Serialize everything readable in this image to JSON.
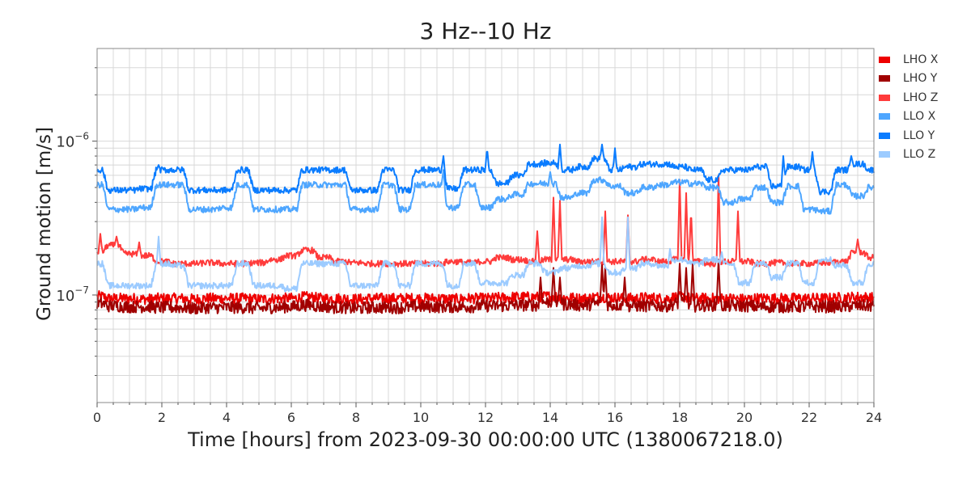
{
  "chart_data": {
    "type": "line",
    "title": "3 Hz--10 Hz",
    "xlabel": "Time [hours] from 2023-09-30 00:00:00 UTC (1380067218.0)",
    "ylabel": "Ground motion [m/s]",
    "xlim": [
      0,
      24
    ],
    "ylim": [
      2e-08,
      4e-06
    ],
    "yscale": "log",
    "grid": true,
    "legend_position": "right",
    "x_ticks": [
      "0",
      "2",
      "4",
      "6",
      "8",
      "10",
      "12",
      "14",
      "16",
      "18",
      "20",
      "22",
      "24"
    ],
    "y_ticks": [
      {
        "value": 1e-06,
        "base": "10",
        "exp": "−6"
      },
      {
        "value": 1e-07,
        "base": "10",
        "exp": "−7"
      }
    ],
    "value_unit_scale": 1e-07,
    "x": [
      0,
      0.5,
      1,
      1.5,
      2,
      2.5,
      3,
      3.5,
      4,
      4.5,
      5,
      5.5,
      6,
      6.5,
      7,
      7.5,
      8,
      8.5,
      9,
      9.5,
      10,
      10.5,
      11,
      11.5,
      12,
      12.5,
      13,
      13.5,
      14,
      14.5,
      15,
      15.5,
      16,
      16.5,
      17,
      17.5,
      18,
      18.5,
      19,
      19.5,
      20,
      20.5,
      21,
      21.5,
      22,
      22.5,
      23,
      23.5,
      24
    ],
    "series": [
      {
        "name": "LHO X",
        "color": "#ee0000",
        "noise": 0.035,
        "values": [
          0.98,
          0.95,
          0.95,
          0.94,
          0.95,
          0.95,
          0.94,
          0.95,
          0.95,
          0.95,
          0.94,
          0.95,
          0.95,
          0.97,
          0.95,
          0.95,
          0.94,
          0.95,
          0.95,
          0.95,
          0.95,
          0.95,
          0.94,
          0.95,
          0.95,
          0.96,
          0.97,
          0.97,
          0.98,
          0.96,
          0.95,
          0.97,
          0.96,
          0.95,
          0.96,
          0.95,
          0.97,
          0.95,
          0.95,
          0.95,
          0.94,
          0.95,
          0.95,
          0.95,
          0.95,
          0.95,
          0.96,
          0.97,
          0.96
        ],
        "spikes": []
      },
      {
        "name": "LHO Y",
        "color": "#a00000",
        "noise": 0.04,
        "values": [
          0.88,
          0.85,
          0.84,
          0.84,
          0.83,
          0.83,
          0.82,
          0.83,
          0.83,
          0.83,
          0.82,
          0.83,
          0.84,
          0.86,
          0.84,
          0.83,
          0.82,
          0.83,
          0.83,
          0.83,
          0.84,
          0.84,
          0.84,
          0.84,
          0.85,
          0.85,
          0.86,
          0.86,
          0.9,
          0.87,
          0.86,
          0.88,
          0.86,
          0.85,
          0.85,
          0.85,
          0.88,
          0.85,
          0.86,
          0.85,
          0.85,
          0.84,
          0.84,
          0.84,
          0.84,
          0.84,
          0.84,
          0.85,
          0.85
        ],
        "spikes": [
          [
            13.7,
            1.3
          ],
          [
            14.1,
            1.5
          ],
          [
            14.3,
            1.3
          ],
          [
            15.6,
            1.6
          ],
          [
            15.7,
            1.5
          ],
          [
            16.3,
            1.3
          ],
          [
            18.0,
            1.6
          ],
          [
            18.2,
            1.5
          ],
          [
            18.4,
            1.6
          ],
          [
            19.2,
            1.7
          ]
        ]
      },
      {
        "name": "LHO Z",
        "color": "#ff3b3b",
        "noise": 0.02,
        "values": [
          1.9,
          2.1,
          1.85,
          1.8,
          1.65,
          1.6,
          1.6,
          1.62,
          1.6,
          1.6,
          1.62,
          1.7,
          1.8,
          1.95,
          1.75,
          1.65,
          1.62,
          1.6,
          1.6,
          1.6,
          1.6,
          1.6,
          1.65,
          1.62,
          1.65,
          1.75,
          1.7,
          1.65,
          1.7,
          1.7,
          1.65,
          1.65,
          1.65,
          1.65,
          1.7,
          1.65,
          1.7,
          1.65,
          1.6,
          1.65,
          1.65,
          1.6,
          1.62,
          1.6,
          1.6,
          1.62,
          1.65,
          1.9,
          1.75
        ],
        "spikes": [
          [
            0.1,
            2.5
          ],
          [
            0.6,
            2.4
          ],
          [
            1.3,
            2.2
          ],
          [
            13.6,
            2.6
          ],
          [
            14.1,
            4.3
          ],
          [
            14.3,
            4.1
          ],
          [
            15.7,
            3.5
          ],
          [
            16.4,
            3.3
          ],
          [
            18.0,
            5.6
          ],
          [
            18.2,
            4.6
          ],
          [
            18.35,
            3.6
          ],
          [
            19.2,
            6.0
          ],
          [
            19.8,
            3.5
          ],
          [
            23.5,
            2.3
          ]
        ]
      },
      {
        "name": "LLO X",
        "color": "#4ea6ff",
        "noise": 0.02,
        "values": [
          5.2,
          3.6,
          3.6,
          3.7,
          5.2,
          5.2,
          3.6,
          3.6,
          3.7,
          5.2,
          3.6,
          3.6,
          3.6,
          5.2,
          5.2,
          5.2,
          3.6,
          3.6,
          5.2,
          3.6,
          5.2,
          5.2,
          3.7,
          5.2,
          3.7,
          4.2,
          4.5,
          5.3,
          5.3,
          4.3,
          4.6,
          5.6,
          5.1,
          4.6,
          5.0,
          5.2,
          5.4,
          5.3,
          5.0,
          4.0,
          4.2,
          5.0,
          4.0,
          5.1,
          3.6,
          3.5,
          5.2,
          4.4,
          5.0
        ],
        "spikes": [
          [
            10.7,
            6.5
          ],
          [
            14.0,
            6.3
          ]
        ]
      },
      {
        "name": "LLO Y",
        "color": "#0a7cff",
        "noise": 0.02,
        "values": [
          6.5,
          4.8,
          4.8,
          4.9,
          6.5,
          6.5,
          4.8,
          4.8,
          4.8,
          6.5,
          4.8,
          4.8,
          4.8,
          6.5,
          6.5,
          6.5,
          4.8,
          4.8,
          6.5,
          4.8,
          6.5,
          6.5,
          4.9,
          6.5,
          6.5,
          5.3,
          6.0,
          7.1,
          7.2,
          6.5,
          6.8,
          7.7,
          6.5,
          6.8,
          7.1,
          7.1,
          6.8,
          6.5,
          5.6,
          6.5,
          6.5,
          6.8,
          5.1,
          6.8,
          6.5,
          4.7,
          6.5,
          7.1,
          6.5
        ],
        "spikes": [
          [
            1.9,
            7.0
          ],
          [
            10.7,
            8.0
          ],
          [
            12.05,
            9.0
          ],
          [
            14.3,
            9.5
          ],
          [
            15.6,
            9.5
          ],
          [
            16.0,
            9.0
          ],
          [
            21.2,
            8.0
          ],
          [
            22.1,
            8.5
          ],
          [
            23.3,
            8.0
          ]
        ]
      },
      {
        "name": "LLO Z",
        "color": "#9ccbff",
        "noise": 0.02,
        "values": [
          1.6,
          1.15,
          1.15,
          1.15,
          1.6,
          1.55,
          1.15,
          1.15,
          1.15,
          1.6,
          1.15,
          1.15,
          1.1,
          1.6,
          1.6,
          1.6,
          1.15,
          1.15,
          1.6,
          1.15,
          1.6,
          1.6,
          1.15,
          1.6,
          1.2,
          1.2,
          1.35,
          1.6,
          1.4,
          1.5,
          1.55,
          1.6,
          1.4,
          1.5,
          1.6,
          1.55,
          1.7,
          1.6,
          1.7,
          1.6,
          1.2,
          1.6,
          1.3,
          1.6,
          1.2,
          1.7,
          1.55,
          1.2,
          1.6
        ],
        "spikes": [
          [
            1.9,
            2.4
          ],
          [
            15.6,
            3.2
          ],
          [
            16.4,
            3.2
          ],
          [
            17.7,
            2.0
          ],
          [
            19.3,
            1.9
          ]
        ]
      }
    ]
  }
}
